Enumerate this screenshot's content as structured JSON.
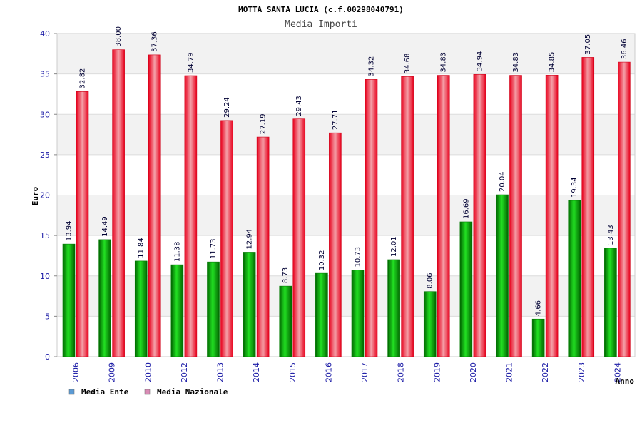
{
  "chart_data": {
    "type": "bar",
    "title": "MOTTA SANTA LUCIA (c.f.00298040791)",
    "subtitle": "Media Importi",
    "xlabel": "Anno",
    "ylabel": "Euro",
    "ylim": [
      0,
      40
    ],
    "yticks": [
      "0",
      "5",
      "10",
      "15",
      "20",
      "25",
      "30",
      "35",
      "40"
    ],
    "categories": [
      "2006",
      "2009",
      "2010",
      "2012",
      "2013",
      "2014",
      "2015",
      "2016",
      "2017",
      "2018",
      "2019",
      "2020",
      "2021",
      "2022",
      "2023",
      "2024"
    ],
    "series": [
      {
        "name": "Media Ente",
        "color": "#00b000",
        "labels": [
          "13.94",
          "14.49",
          "11.84",
          "11.38",
          "11.73",
          "12.94",
          "8.73",
          "10.32",
          "10.73",
          "12.01",
          "8.06",
          "16.69",
          "20.04",
          "4.66",
          "19.34",
          "13.43"
        ],
        "values": [
          13.94,
          14.49,
          11.84,
          11.38,
          11.73,
          12.94,
          8.73,
          10.32,
          10.73,
          12.01,
          8.06,
          16.69,
          20.04,
          4.66,
          19.34,
          13.43
        ]
      },
      {
        "name": "Media Nazionale",
        "color": "#e8001c",
        "labels": [
          "32.82",
          "38.00",
          "37.36",
          "34.79",
          "29.24",
          "27.19",
          "29.43",
          "27.71",
          "34.32",
          "34.68",
          "34.83",
          "34.94",
          "34.83",
          "34.85",
          "37.05",
          "36.46"
        ],
        "values": [
          32.82,
          38.0,
          37.36,
          34.79,
          29.24,
          27.19,
          29.43,
          27.71,
          34.32,
          34.68,
          34.83,
          34.94,
          34.83,
          34.85,
          37.05,
          36.46
        ]
      }
    ],
    "legend": [
      {
        "label": "Media Ente",
        "color": "#5b9bd5"
      },
      {
        "label": "Media Nazionale",
        "color": "#d98bb5"
      }
    ],
    "grid": true,
    "legend_position": "bottom-left"
  }
}
